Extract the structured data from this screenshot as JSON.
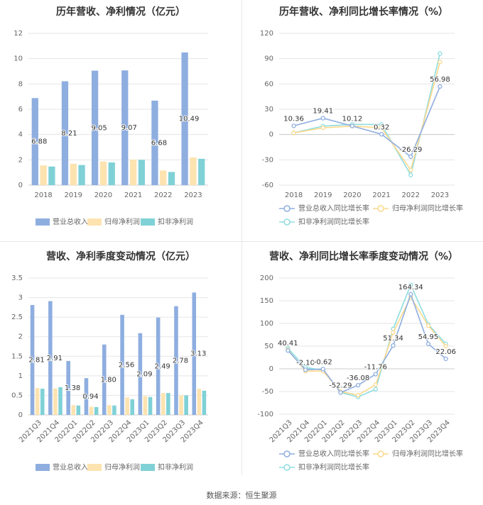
{
  "footer": {
    "source": "数据来源：恒生聚源"
  },
  "colors": {
    "revenue": "#8eaee0",
    "parent_net": "#fde3b0",
    "deducted_net": "#7fd1d6",
    "rev_line": "#8eaee0",
    "parent_line": "#fcd98d",
    "deducted_line": "#8fdde0",
    "grid": "#e5e5e5",
    "axis_text": "#666666",
    "title": "#333333"
  },
  "chart_data": [
    {
      "id": "annual-bar",
      "type": "bar",
      "title": "历年营收、净利情况（亿元）",
      "categories": [
        "2018",
        "2019",
        "2020",
        "2021",
        "2022",
        "2023"
      ],
      "yticks": [
        "0",
        "2",
        "4",
        "6",
        "8",
        "10",
        "12"
      ],
      "ylim": [
        0,
        12
      ],
      "series": [
        {
          "name": "营业总收入",
          "values": [
            6.88,
            8.21,
            9.05,
            9.07,
            6.68,
            10.49
          ],
          "labels": [
            "6.88",
            "8.21",
            "9.05",
            "9.07",
            "6.68",
            "10.49"
          ]
        },
        {
          "name": "归母净利润",
          "values": [
            1.56,
            1.69,
            1.87,
            2.02,
            1.16,
            2.19
          ]
        },
        {
          "name": "扣非净利润",
          "values": [
            1.47,
            1.59,
            1.79,
            2.0,
            1.04,
            2.08
          ]
        }
      ],
      "grid": true,
      "legend": "bottom"
    },
    {
      "id": "annual-growth",
      "type": "line",
      "title": "历年营收、净利同比增长率情况（%）",
      "categories": [
        "2018",
        "2019",
        "2020",
        "2021",
        "2022",
        "2023"
      ],
      "yticks": [
        "-60",
        "-30",
        "0",
        "30",
        "60",
        "90",
        "120"
      ],
      "ylim": [
        -60,
        120
      ],
      "series": [
        {
          "name": "营业总收入同比增长率",
          "values": [
            10.36,
            19.41,
            10.12,
            0.32,
            -26.29,
            56.98
          ],
          "labels": [
            "10.36",
            "19.41",
            "10.12",
            "0.32",
            "-26.29",
            "56.98"
          ]
        },
        {
          "name": "归母净利润同比增长率",
          "values": [
            2,
            8,
            10,
            8,
            -42,
            86
          ]
        },
        {
          "name": "扣非净利润同比增长率",
          "values": [
            2,
            10,
            12,
            12,
            -48,
            96
          ]
        }
      ],
      "grid": true,
      "legend": "bottom"
    },
    {
      "id": "quarter-bar",
      "type": "bar",
      "title": "营收、净利季度变动情况（亿元）",
      "categories": [
        "2021Q3",
        "2021Q4",
        "2022Q1",
        "2022Q2",
        "2022Q3",
        "2022Q4",
        "2023Q1",
        "2023Q2",
        "2023Q3",
        "2023Q4"
      ],
      "yticks": [
        "0",
        "0.5",
        "1",
        "1.5",
        "2",
        "2.5",
        "3",
        "3.5"
      ],
      "ylim": [
        0,
        3.5
      ],
      "series": [
        {
          "name": "营业总收入",
          "values": [
            2.81,
            2.91,
            1.38,
            0.94,
            1.8,
            2.56,
            2.09,
            2.49,
            2.78,
            3.13
          ],
          "labels": [
            "2.81",
            "2.91",
            "1.38",
            "0.94",
            "1.80",
            "2.56",
            "2.09",
            "2.49",
            "2.78",
            "3.13"
          ]
        },
        {
          "name": "归母净利润",
          "values": [
            0.69,
            0.68,
            0.25,
            0.21,
            0.25,
            0.45,
            0.48,
            0.56,
            0.5,
            0.67
          ]
        },
        {
          "name": "扣非净利润",
          "values": [
            0.67,
            0.71,
            0.24,
            0.2,
            0.24,
            0.4,
            0.46,
            0.56,
            0.5,
            0.62
          ]
        }
      ],
      "grid": true,
      "legend": "bottom"
    },
    {
      "id": "quarter-growth",
      "type": "line",
      "title": "营收、净利同比增长率季度变动情况（%）",
      "categories": [
        "2021Q3",
        "2021Q4",
        "2022Q1",
        "2022Q2",
        "2022Q3",
        "2022Q4",
        "2023Q1",
        "2023Q2",
        "2023Q3",
        "2023Q4"
      ],
      "yticks": [
        "-100",
        "-50",
        "0",
        "50",
        "100",
        "150",
        "200"
      ],
      "ylim": [
        -100,
        200
      ],
      "series": [
        {
          "name": "营业总收入同比增长率",
          "values": [
            40.41,
            -2.1,
            -0.62,
            -52.29,
            -36.08,
            -11.76,
            51.34,
            164.34,
            54.95,
            22.06
          ],
          "labels": [
            "40.41",
            "-2.10",
            "-0.62",
            "-52.29",
            "-36.08",
            "-11.76",
            "51.34",
            "164.34",
            "54.95",
            "22.06"
          ]
        },
        {
          "name": "归母净利润同比增长率",
          "values": [
            42,
            -5,
            -5,
            -50,
            -58,
            -35,
            80,
            158,
            95,
            50
          ]
        },
        {
          "name": "扣非净利润同比增长率",
          "values": [
            45,
            3,
            -3,
            -52,
            -62,
            -45,
            88,
            185,
            98,
            55
          ]
        }
      ],
      "grid": true,
      "legend": "bottom"
    }
  ]
}
